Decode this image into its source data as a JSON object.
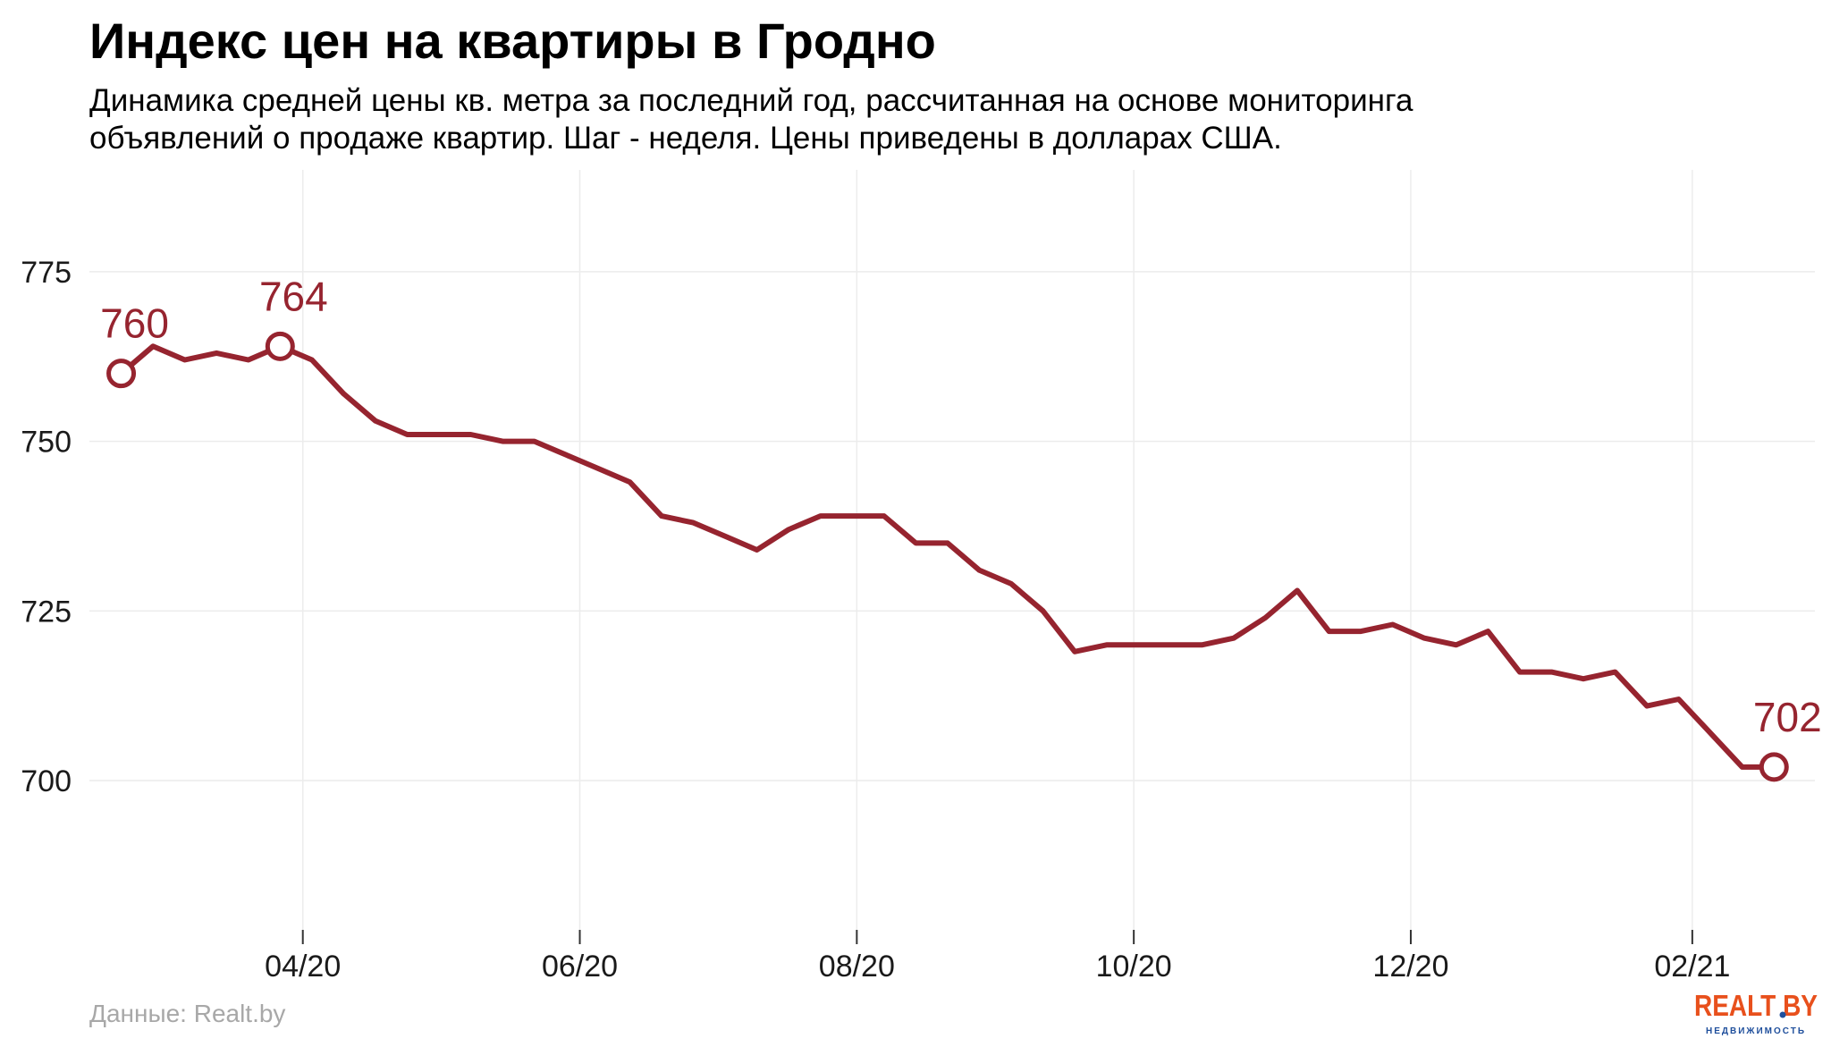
{
  "chart_data": {
    "type": "line",
    "title": "Индекс цен на квартиры в Гродно",
    "subtitle_lines": [
      "Динамика средней цены кв. метра за последний год, рассчитанная на основе мониторинга",
      "объявлений о продаже квартир. Шаг - неделя. Цены приведены в долларах США."
    ],
    "source": "Данные: Realt.by",
    "xlabel": "",
    "ylabel": "",
    "x_ticks": [
      {
        "date": "2020-04-01",
        "label": "04/20"
      },
      {
        "date": "2020-06-01",
        "label": "06/20"
      },
      {
        "date": "2020-08-01",
        "label": "08/20"
      },
      {
        "date": "2020-10-01",
        "label": "10/20"
      },
      {
        "date": "2020-12-01",
        "label": "12/20"
      },
      {
        "date": "2021-02-01",
        "label": "02/21"
      }
    ],
    "y_ticks": [
      700,
      725,
      750,
      775
    ],
    "ylim": [
      678,
      790
    ],
    "xlim": [
      "2020-02-14",
      "2021-02-28"
    ],
    "grid": true,
    "legend": "none",
    "series": [
      {
        "color": "#96242f",
        "points": [
          [
            "2020-02-21",
            760
          ],
          [
            "2020-02-28",
            764
          ],
          [
            "2020-03-06",
            762
          ],
          [
            "2020-03-13",
            763
          ],
          [
            "2020-03-20",
            762
          ],
          [
            "2020-03-27",
            764
          ],
          [
            "2020-04-03",
            762
          ],
          [
            "2020-04-10",
            757
          ],
          [
            "2020-04-17",
            753
          ],
          [
            "2020-04-24",
            751
          ],
          [
            "2020-05-01",
            751
          ],
          [
            "2020-05-08",
            751
          ],
          [
            "2020-05-15",
            750
          ],
          [
            "2020-05-22",
            750
          ],
          [
            "2020-05-29",
            748
          ],
          [
            "2020-06-05",
            746
          ],
          [
            "2020-06-12",
            744
          ],
          [
            "2020-06-19",
            739
          ],
          [
            "2020-06-26",
            738
          ],
          [
            "2020-07-03",
            736
          ],
          [
            "2020-07-10",
            734
          ],
          [
            "2020-07-17",
            737
          ],
          [
            "2020-07-24",
            739
          ],
          [
            "2020-07-31",
            739
          ],
          [
            "2020-08-07",
            739
          ],
          [
            "2020-08-14",
            735
          ],
          [
            "2020-08-21",
            735
          ],
          [
            "2020-08-28",
            731
          ],
          [
            "2020-09-04",
            729
          ],
          [
            "2020-09-11",
            725
          ],
          [
            "2020-09-18",
            719
          ],
          [
            "2020-09-25",
            720
          ],
          [
            "2020-10-02",
            720
          ],
          [
            "2020-10-09",
            720
          ],
          [
            "2020-10-16",
            720
          ],
          [
            "2020-10-23",
            721
          ],
          [
            "2020-10-30",
            724
          ],
          [
            "2020-11-06",
            728
          ],
          [
            "2020-11-13",
            722
          ],
          [
            "2020-11-20",
            722
          ],
          [
            "2020-11-27",
            723
          ],
          [
            "2020-12-04",
            721
          ],
          [
            "2020-12-11",
            720
          ],
          [
            "2020-12-18",
            722
          ],
          [
            "2020-12-25",
            716
          ],
          [
            "2021-01-01",
            716
          ],
          [
            "2021-01-08",
            715
          ],
          [
            "2021-01-15",
            716
          ],
          [
            "2021-01-22",
            711
          ],
          [
            "2021-01-29",
            712
          ],
          [
            "2021-02-05",
            707
          ],
          [
            "2021-02-12",
            702
          ],
          [
            "2021-02-19",
            702
          ]
        ]
      }
    ],
    "annotations": [
      {
        "date": "2020-02-21",
        "value": 760,
        "label": "760",
        "placement": "above"
      },
      {
        "date": "2020-03-27",
        "value": 764,
        "label": "764",
        "placement": "above"
      },
      {
        "date": "2021-02-19",
        "value": 702,
        "label": "702",
        "placement": "above"
      }
    ],
    "colors": {
      "line": "#96242f",
      "label": "#96242f",
      "grid": "#ececec",
      "tick": "#1a1a1a"
    }
  },
  "logo": {
    "brand": "REALT BY",
    "tagline": "НЕДВИЖИМОСТЬ",
    "brand_color": "#e8501c",
    "dot_color": "#1f4f9c"
  }
}
